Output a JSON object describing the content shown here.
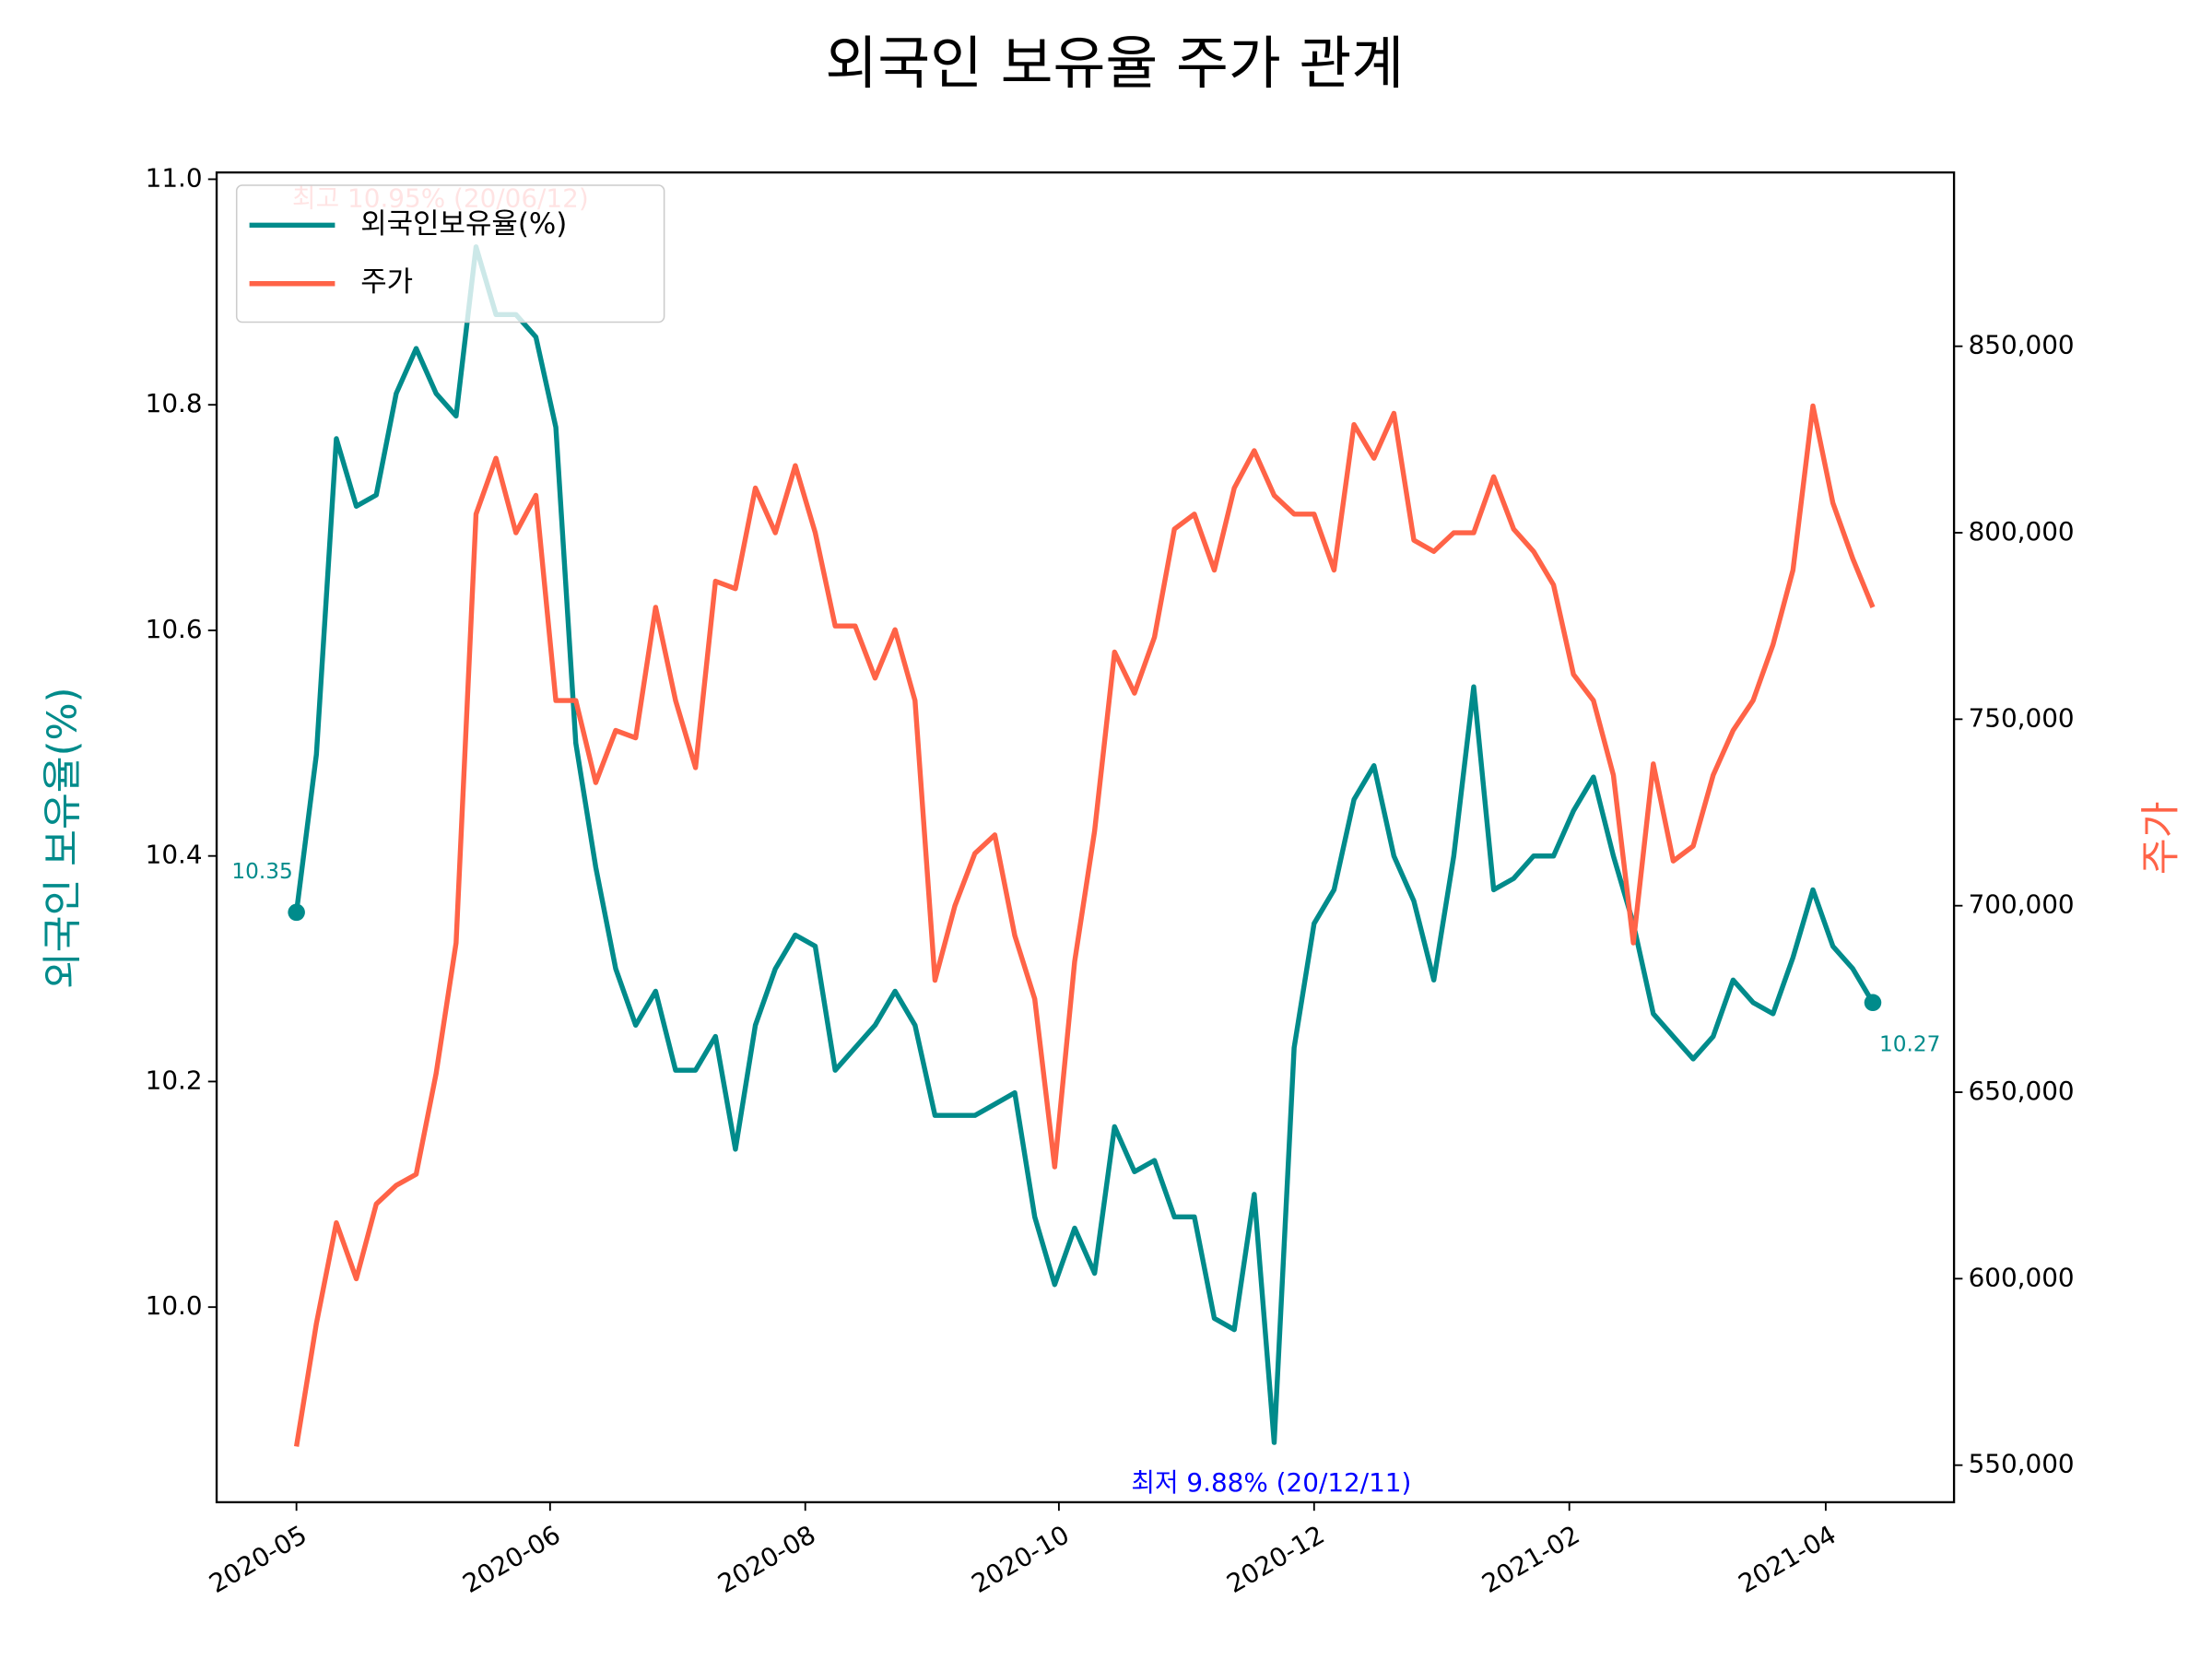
{
  "chart_data": {
    "type": "line",
    "title": "외국인 보유율 주가 관계",
    "y_label": "외국인 보유율(%)",
    "y2_label": "주가",
    "xlim": [
      -4,
      83.07
    ],
    "xticks": [
      {
        "value": 0,
        "label": "2020-05"
      },
      {
        "value": 12.71,
        "label": "2020-06"
      },
      {
        "value": 25.5,
        "label": "2020-08"
      },
      {
        "value": 38.21,
        "label": "2020-10"
      },
      {
        "value": 51.0,
        "label": "2020-12"
      },
      {
        "value": 63.79,
        "label": "2021-02"
      },
      {
        "value": 76.64,
        "label": "2021-04"
      }
    ],
    "ylim": [
      9.827,
      11.006
    ],
    "yticks": [
      {
        "value": 10.0,
        "label": "10.0"
      },
      10.2,
      10.4,
      10.6,
      10.8,
      {
        "value": 11.0,
        "label": "11.0"
      }
    ],
    "y2lim": [
      540064,
      896600
    ],
    "y2ticks": [
      {
        "value": 550000,
        "label": "550,000"
      },
      {
        "value": 600000,
        "label": "600,000"
      },
      {
        "value": 650000,
        "label": "650,000"
      },
      {
        "value": 700000,
        "label": "700,000"
      },
      {
        "value": 750000,
        "label": "750,000"
      },
      {
        "value": 800000,
        "label": "800,000"
      },
      {
        "value": 850000,
        "label": "850,000"
      }
    ],
    "legend": "upper left",
    "series": [
      {
        "name": "외국인보유율(%)",
        "color": "#008b8b",
        "axis": "y",
        "values": [
          10.35,
          10.49,
          10.77,
          10.71,
          10.72,
          10.81,
          10.85,
          10.81,
          10.79,
          10.94,
          10.88,
          10.88,
          10.86,
          10.78,
          10.5,
          10.39,
          10.3,
          10.25,
          10.28,
          10.21,
          10.21,
          10.24,
          10.14,
          10.25,
          10.3,
          10.33,
          10.32,
          10.21,
          10.23,
          10.25,
          10.28,
          10.25,
          10.17,
          10.17,
          10.17,
          10.18,
          10.19,
          10.08,
          10.02,
          10.07,
          10.03,
          10.16,
          10.12,
          10.13,
          10.08,
          10.08,
          9.99,
          9.98,
          10.1,
          9.88,
          10.23,
          10.34,
          10.37,
          10.45,
          10.48,
          10.4,
          10.36,
          10.29,
          10.4,
          10.55,
          10.37,
          10.38,
          10.4,
          10.4,
          10.44,
          10.47,
          10.4,
          10.34,
          10.26,
          10.24,
          10.22,
          10.24,
          10.29,
          10.27,
          10.26,
          10.31,
          10.37,
          10.32,
          10.3,
          10.27
        ]
      },
      {
        "name": "주가",
        "color": "#ff6347",
        "axis": "y2",
        "values": [
          555000,
          588000,
          615000,
          600000,
          620000,
          625000,
          628000,
          655000,
          690000,
          805000,
          820000,
          800000,
          810000,
          755000,
          755000,
          733000,
          747000,
          745000,
          780000,
          755000,
          737000,
          787000,
          785000,
          812000,
          800000,
          818000,
          800000,
          775000,
          775000,
          761000,
          774000,
          755000,
          680000,
          700000,
          714000,
          719000,
          692000,
          675000,
          630000,
          685000,
          720000,
          768000,
          757000,
          772000,
          801000,
          805000,
          790000,
          812000,
          822000,
          810000,
          805000,
          805000,
          790000,
          829000,
          820000,
          832000,
          798000,
          795000,
          800000,
          800000,
          815000,
          801000,
          795000,
          786000,
          762000,
          755000,
          735000,
          690000,
          738000,
          712000,
          716000,
          735000,
          747000,
          755000,
          770000,
          790000,
          834000,
          808000,
          793000,
          780000
        ]
      }
    ],
    "annotations": [
      {
        "text": "최고 10.95% (20/06/12)",
        "color": "#ff0000"
      },
      {
        "text": "최저 9.88% (20/12/11)",
        "color": "#0000ff"
      }
    ]
  }
}
